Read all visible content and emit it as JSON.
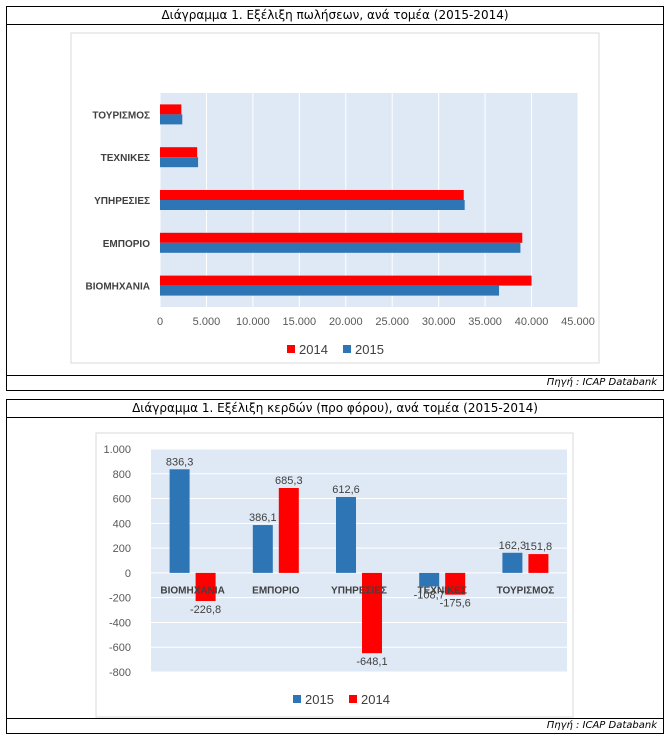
{
  "colors": {
    "y2014": "#ff0000",
    "y2015": "#2e75b6",
    "plot_bg": "#dfe9f5",
    "grid": "#ffffff"
  },
  "chart1": {
    "header": "Διάγραμμα 1. Εξέλιξη πωλήσεων, ανά τομέα (2015-2014)",
    "source": "Πηγή : ICAP Databank"
  },
  "chart2": {
    "header": "Διάγραμμα 1. Εξέλιξη κερδών (προ φόρου), ανά τομέα (2015-2014)",
    "source": "Πηγή : ICAP Databank"
  },
  "chart_data": [
    {
      "type": "bar",
      "orientation": "horizontal",
      "title": "Διάγραμμα 1. Εξέλιξη πωλήσεων, ανά τομέα (2015-2014)",
      "categories": [
        "ΤΟΥΡΙΣΜΟΣ",
        "ΤΕΧΝΙΚΕΣ",
        "ΥΠΗΡΕΣΙΕΣ",
        "ΕΜΠΟΡΙΟ",
        "ΒΙΟΜΗΧΑΝΙΑ"
      ],
      "series": [
        {
          "name": "2014",
          "values": [
            2300,
            4000,
            32700,
            39000,
            40000
          ]
        },
        {
          "name": "2015",
          "values": [
            2400,
            4100,
            32800,
            38800,
            36500
          ]
        }
      ],
      "xlim": [
        0,
        45000
      ],
      "ticks": [
        "0",
        "5.000",
        "10.000",
        "15.000",
        "20.000",
        "25.000",
        "30.000",
        "35.000",
        "40.000",
        "45.000"
      ],
      "legend": [
        {
          "name": "2014",
          "label": "2014"
        },
        {
          "name": "2015",
          "label": "2015"
        }
      ],
      "legend_position": "bottom"
    },
    {
      "type": "bar",
      "orientation": "vertical",
      "title": "Διάγραμμα 1. Εξέλιξη κερδών (προ φόρου), ανά τομέα (2015-2014)",
      "categories": [
        "ΒΙΟΜΗΧΑΝΙΑ",
        "ΕΜΠΟΡΙΟ",
        "ΥΠΗΡΕΣΙΕΣ",
        "ΤΕΧΝΙΚΕΣ",
        "ΤΟΥΡΙΣΜΟΣ"
      ],
      "series": [
        {
          "name": "2015",
          "values": [
            836.3,
            386.1,
            612.6,
            -108.7,
            162.3
          ],
          "labels": [
            "836,3",
            "386,1",
            "612,6",
            "-108,7",
            "162,3"
          ]
        },
        {
          "name": "2014",
          "values": [
            -226.8,
            685.3,
            -648.1,
            -175.6,
            151.8
          ],
          "labels": [
            "-226,8",
            "685,3",
            "-648,1",
            "-175,6",
            "151,8"
          ]
        }
      ],
      "ylim": [
        -800,
        1000
      ],
      "ticks": [
        "1.000",
        "800",
        "600",
        "400",
        "200",
        "0",
        "-200",
        "-400",
        "-600",
        "-800"
      ],
      "legend": [
        {
          "name": "2015",
          "label": "2015"
        },
        {
          "name": "2014",
          "label": "2014"
        }
      ],
      "legend_position": "bottom"
    }
  ]
}
